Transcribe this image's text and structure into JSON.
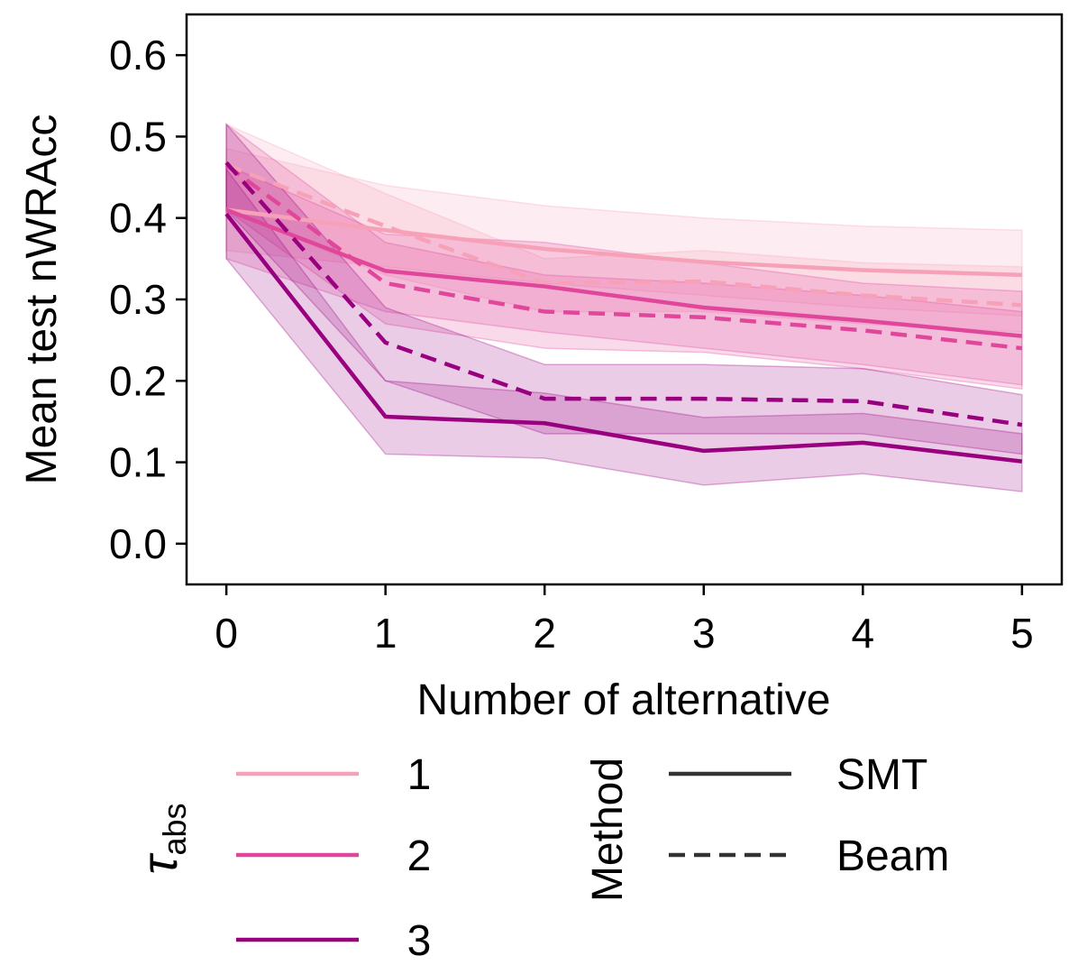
{
  "chart_data": {
    "type": "line",
    "title": "",
    "xlabel": "Number of alternative",
    "ylabel": "Mean test nWRAcc",
    "x": [
      0,
      1,
      2,
      3,
      4,
      5
    ],
    "xlim": [
      -0.25,
      5.25
    ],
    "ylim": [
      -0.05,
      0.65
    ],
    "xticks": [
      "0",
      "1",
      "2",
      "3",
      "4",
      "5"
    ],
    "yticks": [
      "0.0",
      "0.1",
      "0.2",
      "0.3",
      "0.4",
      "0.5",
      "0.6"
    ],
    "grid": false,
    "colors": {
      "1": "#f7a1b8",
      "2": "#e0479a",
      "3": "#990080"
    },
    "series": [
      {
        "tau": "1",
        "method": "SMT",
        "values": [
          0.41,
          0.385,
          0.362,
          0.346,
          0.336,
          0.33
        ],
        "lower": [
          0.36,
          0.34,
          0.32,
          0.305,
          0.29,
          0.28
        ],
        "upper": [
          0.485,
          0.44,
          0.415,
          0.4,
          0.39,
          0.385
        ]
      },
      {
        "tau": "1",
        "method": "Beam",
        "values": [
          0.465,
          0.39,
          0.32,
          0.322,
          0.305,
          0.293
        ],
        "lower": [
          0.41,
          0.33,
          0.285,
          0.285,
          0.27,
          0.26
        ],
        "upper": [
          0.515,
          0.43,
          0.35,
          0.36,
          0.345,
          0.34
        ]
      },
      {
        "tau": "2",
        "method": "SMT",
        "values": [
          0.41,
          0.335,
          0.316,
          0.29,
          0.274,
          0.255
        ],
        "lower": [
          0.35,
          0.285,
          0.26,
          0.24,
          0.22,
          0.195
        ],
        "upper": [
          0.465,
          0.38,
          0.37,
          0.345,
          0.32,
          0.31
        ]
      },
      {
        "tau": "2",
        "method": "Beam",
        "values": [
          0.465,
          0.32,
          0.285,
          0.278,
          0.262,
          0.24
        ],
        "lower": [
          0.41,
          0.27,
          0.24,
          0.235,
          0.215,
          0.19
        ],
        "upper": [
          0.515,
          0.37,
          0.33,
          0.32,
          0.305,
          0.285
        ]
      },
      {
        "tau": "3",
        "method": "SMT",
        "values": [
          0.405,
          0.156,
          0.148,
          0.114,
          0.124,
          0.101
        ],
        "lower": [
          0.35,
          0.11,
          0.105,
          0.072,
          0.086,
          0.064
        ],
        "upper": [
          0.46,
          0.2,
          0.185,
          0.155,
          0.16,
          0.135
        ]
      },
      {
        "tau": "3",
        "method": "Beam",
        "values": [
          0.468,
          0.247,
          0.178,
          0.178,
          0.175,
          0.146
        ],
        "lower": [
          0.41,
          0.2,
          0.135,
          0.135,
          0.135,
          0.11
        ],
        "upper": [
          0.515,
          0.29,
          0.22,
          0.22,
          0.215,
          0.183
        ]
      }
    ],
    "legend": {
      "placement": "bottom",
      "tau_title_base": "τ",
      "tau_title_sub": "abs",
      "tau_entries": [
        {
          "label": "1",
          "color": "#f7a1b8"
        },
        {
          "label": "2",
          "color": "#e0479a"
        },
        {
          "label": "3",
          "color": "#990080"
        }
      ],
      "method_title": "Method",
      "method_entries": [
        {
          "label": "SMT",
          "dash": "solid"
        },
        {
          "label": "Beam",
          "dash": "dashed"
        }
      ]
    }
  }
}
